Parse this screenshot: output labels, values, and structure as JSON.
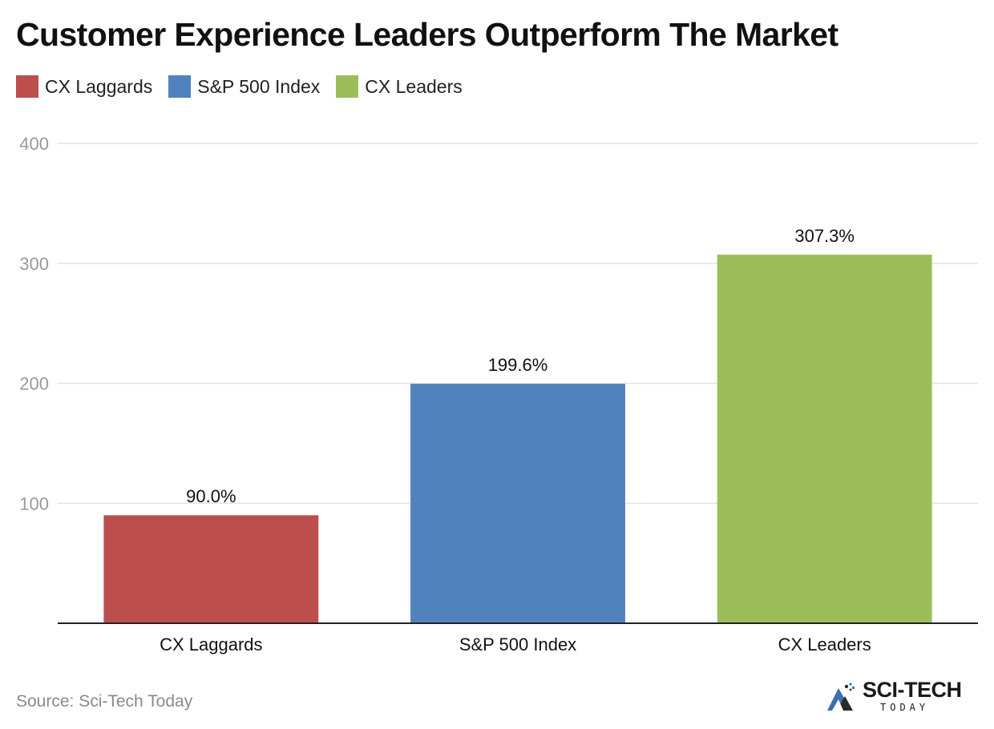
{
  "title": "Customer Experience Leaders Outperform The Market",
  "legend": [
    {
      "label": "CX Laggards",
      "color": "#bc4e4d"
    },
    {
      "label": "S&P 500 Index",
      "color": "#5182bd"
    },
    {
      "label": "CX Leaders",
      "color": "#9dbd5b"
    }
  ],
  "source": "Source: Sci-Tech Today",
  "logo": {
    "main": "SCI-TECH",
    "sub": "TODAY",
    "icon": "mountain-logo-icon"
  },
  "chart_data": {
    "type": "bar",
    "categories": [
      "CX Laggards",
      "S&P 500 Index",
      "CX Leaders"
    ],
    "values": [
      90.0,
      199.6,
      307.3
    ],
    "data_labels": [
      "90.0%",
      "199.6%",
      "307.3%"
    ],
    "colors": [
      "#bc4e4d",
      "#5182bd",
      "#9dbd5b"
    ],
    "yticks": [
      100,
      200,
      300,
      400
    ],
    "ylim": [
      0,
      400
    ],
    "grid": true,
    "legend_position": "top-left",
    "title": "Customer Experience Leaders Outperform The Market"
  }
}
